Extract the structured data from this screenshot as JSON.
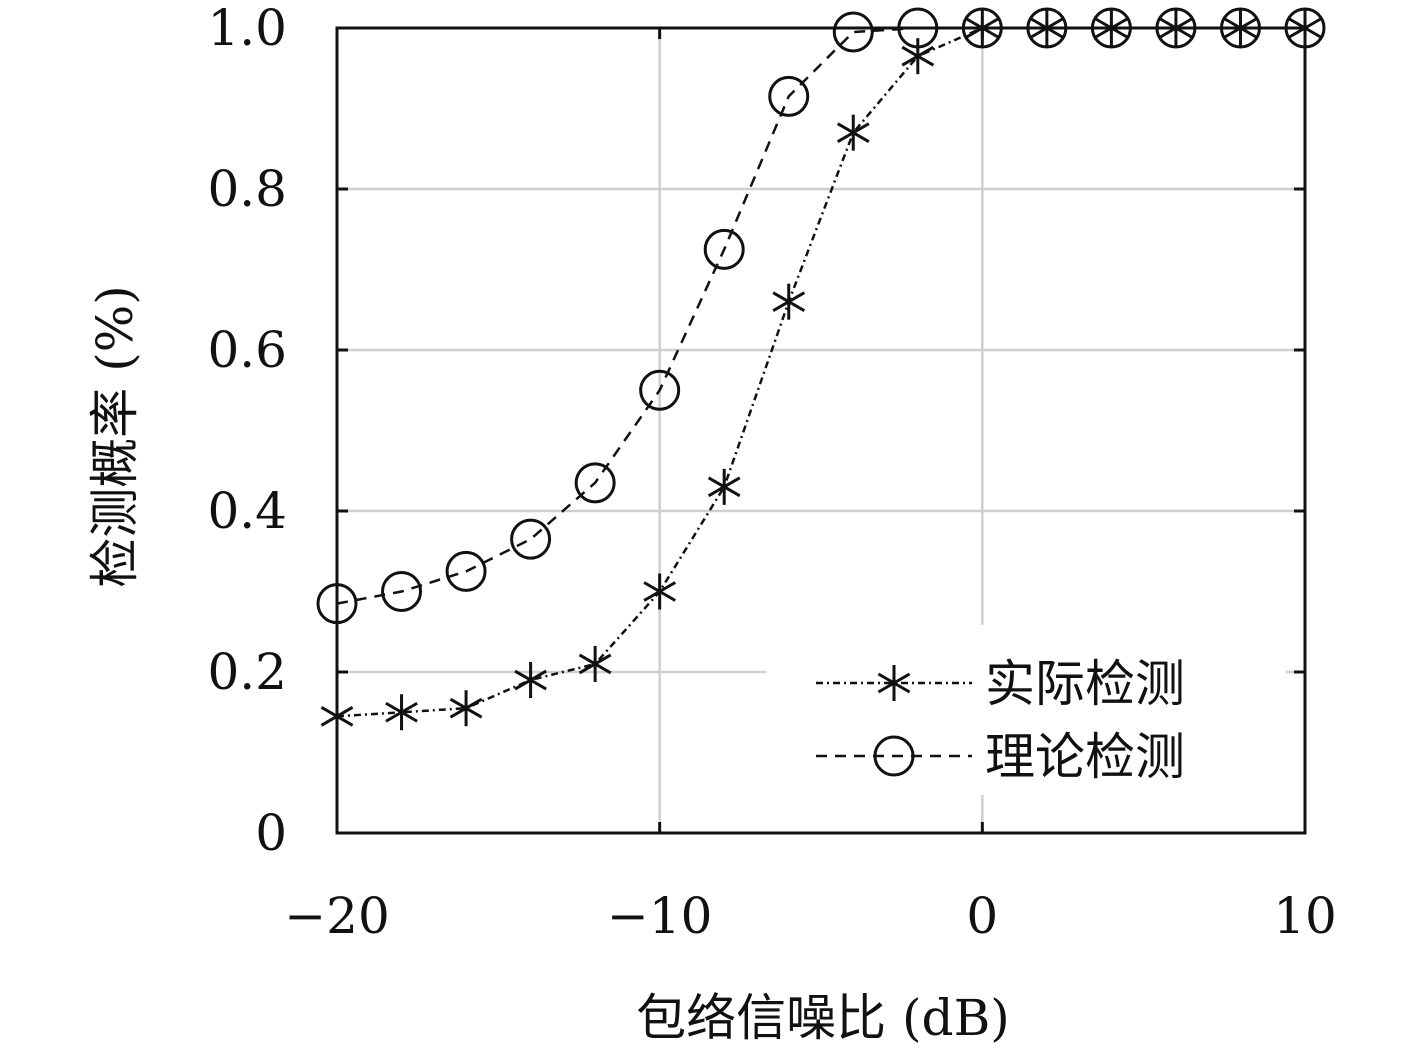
{
  "chart_data": {
    "type": "line",
    "title": "",
    "xlabel": "包络信噪比 (dB)",
    "ylabel": "检测概率 (%)",
    "xlim": [
      -20,
      10
    ],
    "ylim": [
      0,
      1.0
    ],
    "grid": true,
    "legend_position": "bottom-right",
    "x_ticks": [
      -20,
      -10,
      0,
      10
    ],
    "x_tick_labels": [
      "−20",
      "−10",
      "0",
      "10"
    ],
    "y_ticks": [
      0,
      0.2,
      0.4,
      0.6,
      0.8,
      1.0
    ],
    "y_tick_labels": [
      "0",
      "0.2",
      "0.4",
      "0.6",
      "0.8",
      "1.0"
    ],
    "x": [
      -20,
      -18,
      -16,
      -14,
      -12,
      -10,
      -8,
      -6,
      -4,
      -2,
      0,
      2,
      4,
      6,
      8,
      10
    ],
    "series": [
      {
        "name": "实际检测",
        "marker": "asterisk",
        "line_style": "dash-dot",
        "values": [
          0.145,
          0.15,
          0.155,
          0.19,
          0.21,
          0.3,
          0.43,
          0.66,
          0.87,
          0.965,
          1.0,
          1.0,
          1.0,
          1.0,
          1.0,
          1.0
        ]
      },
      {
        "name": "理论检测",
        "marker": "circle",
        "line_style": "dashed",
        "values": [
          0.285,
          0.3,
          0.325,
          0.365,
          0.435,
          0.55,
          0.725,
          0.915,
          0.995,
          1.0,
          1.0,
          1.0,
          1.0,
          1.0,
          1.0,
          1.0
        ]
      }
    ],
    "colors": {
      "line": "#111111",
      "grid": "#cfcfcf",
      "axes": "#111111"
    }
  }
}
